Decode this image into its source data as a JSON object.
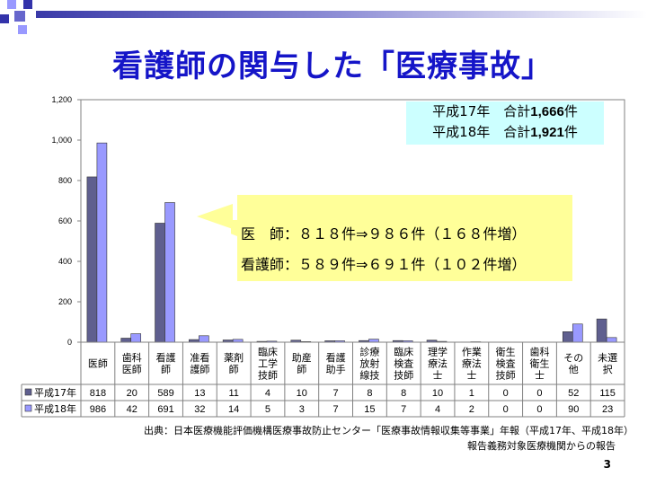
{
  "slide": {
    "title": "看護師の関与した「医療事故」",
    "page_number": "3",
    "source_line1": "出典：日本医療機能評価機構医療事故防止センター「医療事故情報収集等事業」年報（平成17年、平成18年）",
    "source_line2": "報告義務対象医療機関からの報告",
    "colors": {
      "title": "#1515c8",
      "series1": "#5f5f8f",
      "series2": "#9999ff",
      "callout_fill": "#ffff99",
      "legend_fill": "#ccffff"
    }
  },
  "summary": {
    "line1_prefix": "平成17年　合計",
    "line1_value": "1,666",
    "line1_suffix": "件",
    "line2_prefix": "平成18年　合計",
    "line2_value": "1,921",
    "line2_suffix": "件"
  },
  "callout": {
    "line1": "医　師：８１８件⇒９８６件（１６８件増）",
    "line2": "看護師：５８９件⇒６９１件（１０２件増）"
  },
  "chart_data": {
    "type": "bar",
    "categories": [
      "医師",
      "歯科医師",
      "看護師",
      "准看護師",
      "薬剤師",
      "臨床工学技師",
      "助産師",
      "看護助手",
      "診療放射線技師",
      "臨床検査技師",
      "理学療法士",
      "作業療法士",
      "衛生検査技師",
      "歯科衛生士",
      "その他",
      "未選択"
    ],
    "category_lines": [
      [
        "医師"
      ],
      [
        "歯科",
        "医師"
      ],
      [
        "看護",
        "師"
      ],
      [
        "准看",
        "護師"
      ],
      [
        "薬剤",
        "師"
      ],
      [
        "臨床",
        "工学",
        "技師"
      ],
      [
        "助産",
        "師"
      ],
      [
        "看護",
        "助手"
      ],
      [
        "診療",
        "放射",
        "線技"
      ],
      [
        "臨床",
        "検査",
        "技師"
      ],
      [
        "理学",
        "療法",
        "士"
      ],
      [
        "作業",
        "療法",
        "士"
      ],
      [
        "衛生",
        "検査",
        "技師"
      ],
      [
        "歯科",
        "衛生",
        "士"
      ],
      [
        "その",
        "他"
      ],
      [
        "未選",
        "択"
      ]
    ],
    "series": [
      {
        "name": "平成17年",
        "values": [
          818,
          20,
          589,
          13,
          11,
          4,
          10,
          7,
          8,
          8,
          10,
          1,
          0,
          0,
          52,
          115
        ]
      },
      {
        "name": "平成18年",
        "values": [
          986,
          42,
          691,
          32,
          14,
          5,
          3,
          7,
          15,
          7,
          4,
          2,
          0,
          0,
          90,
          23
        ]
      }
    ],
    "y_ticks": [
      "0",
      "200",
      "400",
      "600",
      "800",
      "1,000",
      "1,200"
    ],
    "ylim": [
      0,
      1200
    ],
    "grid": false
  }
}
